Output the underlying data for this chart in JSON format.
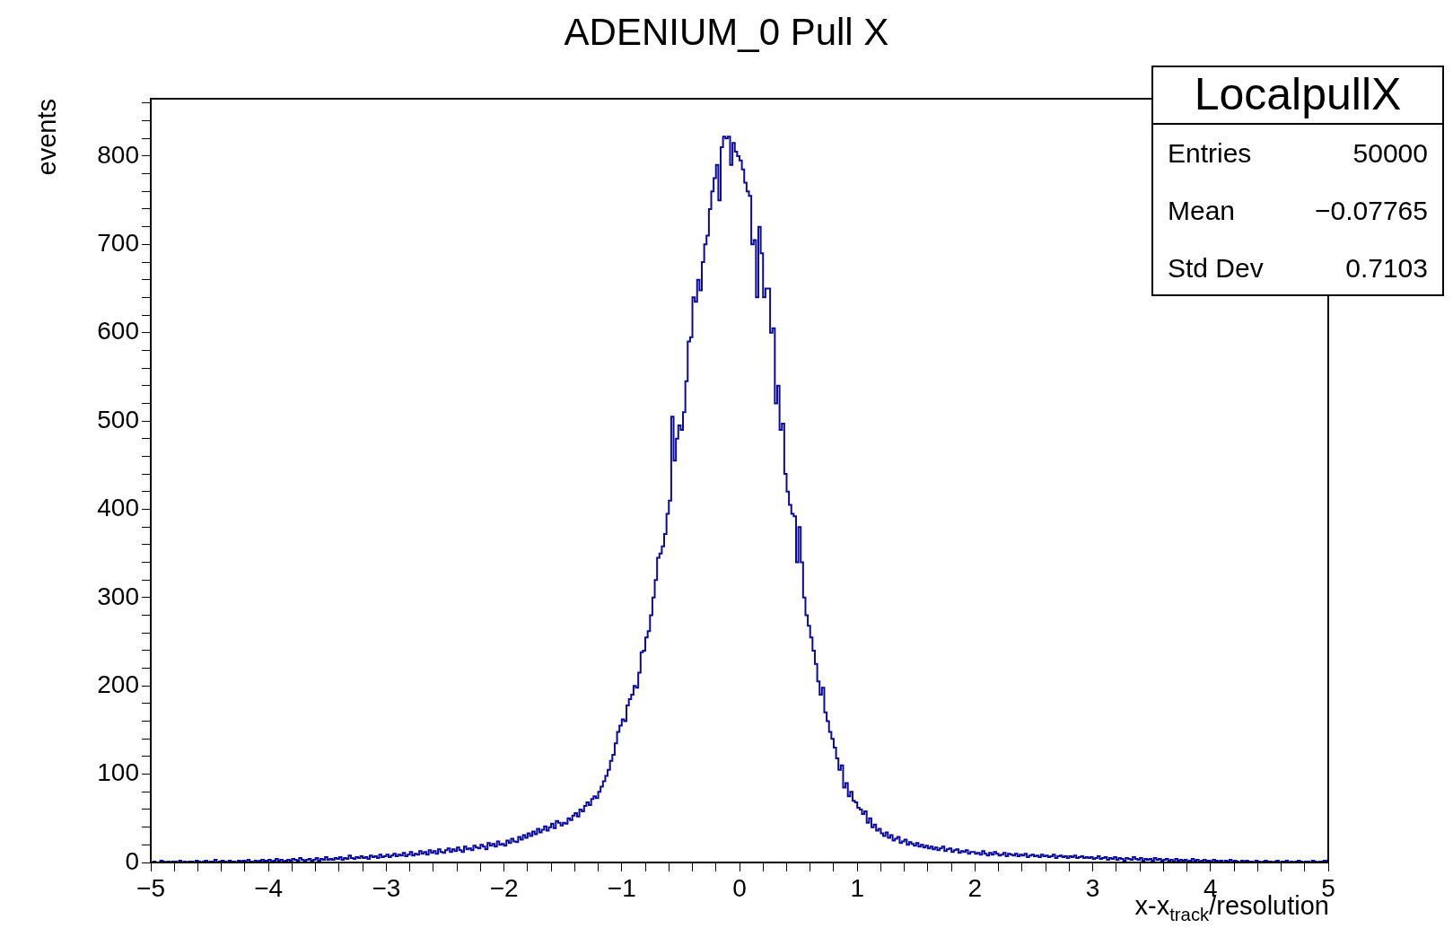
{
  "chart_data": {
    "type": "histogram",
    "title": "ADENIUM_0 Pull X",
    "xlabel": "x-x$_{track}$/resolution",
    "ylabel": "events",
    "color": "#0a0a9c",
    "annotations": [
      "LocalpullX",
      "Entries",
      "50000",
      "Mean",
      "−0.07765",
      "Std Dev",
      "0.7103"
    ],
    "bins": [
      -5,
      -4.98,
      -4.96,
      -4.94,
      -4.92,
      -4.9,
      -4.88,
      -4.86,
      -4.84,
      -4.82,
      -4.8,
      -4.78,
      -4.76,
      -4.74,
      -4.72,
      -4.7,
      -4.68,
      -4.66,
      -4.64,
      -4.62,
      -4.6,
      -4.58,
      -4.56,
      -4.54,
      -4.52,
      -4.5,
      -4.48,
      -4.46,
      -4.44,
      -4.42,
      -4.4,
      -4.38,
      -4.36,
      -4.34,
      -4.32,
      -4.3,
      -4.28,
      -4.26,
      -4.24,
      -4.22,
      -4.2,
      -4.18,
      -4.16,
      -4.14,
      -4.12,
      -4.1,
      -4.08,
      -4.06,
      -4.04,
      -4.02,
      -4,
      -3.98,
      -3.96,
      -3.94,
      -3.92,
      -3.9,
      -3.88,
      -3.86,
      -3.84,
      -3.82,
      -3.8,
      -3.78,
      -3.76,
      -3.74,
      -3.72,
      -3.7,
      -3.68,
      -3.66,
      -3.64,
      -3.62,
      -3.6,
      -3.58,
      -3.56,
      -3.54,
      -3.52,
      -3.5,
      -3.48,
      -3.46,
      -3.44,
      -3.42,
      -3.4,
      -3.38,
      -3.36,
      -3.34,
      -3.32,
      -3.3,
      -3.28,
      -3.26,
      -3.24,
      -3.22,
      -3.2,
      -3.18,
      -3.16,
      -3.14,
      -3.12,
      -3.1,
      -3.08,
      -3.06,
      -3.04,
      -3.02,
      -3,
      -2.98,
      -2.96,
      -2.94,
      -2.92,
      -2.9,
      -2.88,
      -2.86,
      -2.84,
      -2.82,
      -2.8,
      -2.78,
      -2.76,
      -2.74,
      -2.72,
      -2.7,
      -2.68,
      -2.66,
      -2.64,
      -2.62,
      -2.6,
      -2.58,
      -2.56,
      -2.54,
      -2.52,
      -2.5,
      -2.48,
      -2.46,
      -2.44,
      -2.42,
      -2.4,
      -2.38,
      -2.36,
      -2.34,
      -2.32,
      -2.3,
      -2.28,
      -2.26,
      -2.24,
      -2.22,
      -2.2,
      -2.18,
      -2.16,
      -2.14,
      -2.12,
      -2.1,
      -2.08,
      -2.06,
      -2.04,
      -2.02,
      -2,
      -1.98,
      -1.96,
      -1.94,
      -1.92,
      -1.9,
      -1.88,
      -1.86,
      -1.84,
      -1.82,
      -1.8,
      -1.78,
      -1.76,
      -1.74,
      -1.72,
      -1.7,
      -1.68,
      -1.66,
      -1.64,
      -1.62,
      -1.6,
      -1.58,
      -1.56,
      -1.54,
      -1.52,
      -1.5,
      -1.48,
      -1.46,
      -1.44,
      -1.42,
      -1.4,
      -1.38,
      -1.36,
      -1.34,
      -1.32,
      -1.3,
      -1.28,
      -1.26,
      -1.24,
      -1.22,
      -1.2,
      -1.18,
      -1.16,
      -1.14,
      -1.12,
      -1.1,
      -1.08,
      -1.06,
      -1.04,
      -1.02,
      -1,
      -0.98,
      -0.96,
      -0.94,
      -0.92,
      -0.9,
      -0.88,
      -0.86,
      -0.84,
      -0.82,
      -0.8,
      -0.78,
      -0.76,
      -0.74,
      -0.72,
      -0.7,
      -0.68,
      -0.66,
      -0.64,
      -0.62,
      -0.6,
      -0.58,
      -0.56,
      -0.54,
      -0.52,
      -0.5,
      -0.48,
      -0.46,
      -0.44,
      -0.42,
      -0.4,
      -0.38,
      -0.36,
      -0.34,
      -0.32,
      -0.3,
      -0.28,
      -0.26,
      -0.24,
      -0.22,
      -0.2,
      -0.18,
      -0.16,
      -0.14,
      -0.12,
      -0.1,
      -0.08,
      -0.06,
      -0.04,
      -0.02,
      0,
      0.02,
      0.04,
      0.06,
      0.08,
      0.1,
      0.12,
      0.14,
      0.16,
      0.18,
      0.2,
      0.22,
      0.24,
      0.26,
      0.28,
      0.3,
      0.32,
      0.34,
      0.36,
      0.38,
      0.4,
      0.42,
      0.44,
      0.46,
      0.48,
      0.5,
      0.52,
      0.54,
      0.56,
      0.58,
      0.6,
      0.62,
      0.64,
      0.66,
      0.68,
      0.7,
      0.72,
      0.74,
      0.76,
      0.78,
      0.8,
      0.82,
      0.84,
      0.86,
      0.88,
      0.9,
      0.92,
      0.94,
      0.96,
      0.98,
      1,
      1.02,
      1.04,
      1.06,
      1.08,
      1.1,
      1.12,
      1.14,
      1.16,
      1.18,
      1.2,
      1.22,
      1.24,
      1.26,
      1.28,
      1.3,
      1.32,
      1.34,
      1.36,
      1.38,
      1.4,
      1.42,
      1.44,
      1.46,
      1.48,
      1.5,
      1.52,
      1.54,
      1.56,
      1.58,
      1.6,
      1.62,
      1.64,
      1.66,
      1.68,
      1.7,
      1.72,
      1.74,
      1.76,
      1.78,
      1.8,
      1.82,
      1.84,
      1.86,
      1.88,
      1.9,
      1.92,
      1.94,
      1.96,
      1.98,
      2,
      2.02,
      2.04,
      2.06,
      2.08,
      2.1,
      2.12,
      2.14,
      2.16,
      2.18,
      2.2,
      2.22,
      2.24,
      2.26,
      2.28,
      2.3,
      2.32,
      2.34,
      2.36,
      2.38,
      2.4,
      2.42,
      2.44,
      2.46,
      2.48,
      2.5,
      2.52,
      2.54,
      2.56,
      2.58,
      2.6,
      2.62,
      2.64,
      2.66,
      2.68,
      2.7,
      2.72,
      2.74,
      2.76,
      2.78,
      2.8,
      2.82,
      2.84,
      2.86,
      2.88,
      2.9,
      2.92,
      2.94,
      2.96,
      2.98,
      3,
      3.02,
      3.04,
      3.06,
      3.08,
      3.1,
      3.12,
      3.14,
      3.16,
      3.18,
      3.2,
      3.22,
      3.24,
      3.26,
      3.28,
      3.3,
      3.32,
      3.34,
      3.36,
      3.38,
      3.4,
      3.42,
      3.44,
      3.46,
      3.48,
      3.5,
      3.52,
      3.54,
      3.56,
      3.58,
      3.6,
      3.62,
      3.64,
      3.66,
      3.68,
      3.7,
      3.72,
      3.74,
      3.76,
      3.78,
      3.8,
      3.82,
      3.84,
      3.86,
      3.88,
      3.9,
      3.92,
      3.94,
      3.96,
      3.98,
      4,
      4.02,
      4.04,
      4.06,
      4.08,
      4.1,
      4.12,
      4.14,
      4.16,
      4.18,
      4.2,
      4.22,
      4.24,
      4.26,
      4.28,
      4.3,
      4.32,
      4.34,
      4.36,
      4.38,
      4.4,
      4.42,
      4.44,
      4.46,
      4.48,
      4.5,
      4.52,
      4.54,
      4.56,
      4.58,
      4.6,
      4.62,
      4.64,
      4.66,
      4.68,
      4.7,
      4.72,
      4.74,
      4.76,
      4.78,
      4.8,
      4.82,
      4.84,
      4.86,
      4.88,
      4.9,
      4.92,
      4.94,
      4.96,
      4.98,
      5
    ],
    "values": [
      1,
      0,
      1,
      0,
      0,
      2,
      1,
      0,
      1,
      0,
      1,
      1,
      0,
      2,
      0,
      1,
      0,
      1,
      1,
      0,
      2,
      1,
      0,
      1,
      2,
      0,
      1,
      1,
      3,
      0,
      1,
      2,
      1,
      0,
      2,
      1,
      1,
      0,
      2,
      1,
      2,
      1,
      3,
      1,
      0,
      2,
      1,
      2,
      3,
      2,
      2,
      3,
      1,
      2,
      4,
      2,
      3,
      1,
      2,
      3,
      2,
      4,
      3,
      2,
      5,
      3,
      2,
      3,
      4,
      2,
      3,
      5,
      2,
      4,
      3,
      6,
      3,
      4,
      3,
      5,
      4,
      6,
      3,
      5,
      4,
      8,
      5,
      4,
      6,
      5,
      7,
      5,
      6,
      4,
      8,
      6,
      7,
      5,
      9,
      6,
      7,
      9,
      6,
      8,
      10,
      7,
      9,
      8,
      11,
      7,
      9,
      12,
      8,
      10,
      9,
      13,
      10,
      12,
      9,
      14,
      11,
      13,
      10,
      15,
      12,
      11,
      14,
      16,
      12,
      15,
      13,
      17,
      14,
      12,
      18,
      15,
      16,
      14,
      19,
      17,
      16,
      20,
      18,
      15,
      22,
      19,
      21,
      18,
      24,
      20,
      21,
      19,
      25,
      22,
      27,
      24,
      23,
      29,
      26,
      31,
      28,
      33,
      30,
      35,
      32,
      38,
      34,
      37,
      41,
      36,
      40,
      44,
      39,
      47,
      45,
      42,
      45,
      44,
      50,
      48,
      53,
      56,
      52,
      60,
      58,
      64,
      68,
      65,
      72,
      75,
      73,
      80,
      86,
      92,
      98,
      105,
      115,
      122,
      135,
      148,
      155,
      162,
      160,
      178,
      185,
      190,
      200,
      198,
      215,
      238,
      240,
      255,
      262,
      280,
      300,
      320,
      345,
      350,
      358,
      372,
      395,
      410,
      505,
      455,
      480,
      495,
      490,
      510,
      545,
      590,
      595,
      640,
      635,
      660,
      648,
      680,
      700,
      710,
      740,
      760,
      775,
      790,
      750,
      810,
      822,
      820,
      822,
      790,
      815,
      805,
      800,
      795,
      785,
      770,
      760,
      755,
      700,
      705,
      640,
      720,
      690,
      640,
      650,
      650,
      600,
      605,
      520,
      540,
      490,
      497,
      440,
      420,
      405,
      395,
      392,
      340,
      380,
      340,
      300,
      280,
      268,
      255,
      240,
      225,
      205,
      190,
      198,
      170,
      160,
      148,
      140,
      130,
      118,
      105,
      110,
      85,
      90,
      75,
      80,
      70,
      68,
      62,
      60,
      55,
      58,
      45,
      50,
      40,
      43,
      36,
      38,
      33,
      30,
      34,
      28,
      31,
      25,
      27,
      29,
      22,
      24,
      26,
      20,
      23,
      21,
      19,
      22,
      18,
      20,
      17,
      19,
      16,
      18,
      15,
      17,
      14,
      16,
      18,
      13,
      15,
      16,
      12,
      14,
      15,
      11,
      13,
      12,
      14,
      10,
      12,
      12,
      10,
      11,
      9,
      13,
      10,
      8,
      11,
      9,
      12,
      10,
      8,
      9,
      11,
      7,
      10,
      9,
      8,
      10,
      7,
      9,
      8,
      10,
      6,
      8,
      9,
      7,
      8,
      6,
      9,
      7,
      8,
      6,
      7,
      9,
      5,
      7,
      8,
      6,
      7,
      5,
      7,
      6,
      8,
      5,
      6,
      7,
      5,
      6,
      5,
      6,
      4,
      5,
      7,
      4,
      5,
      6,
      3,
      5,
      4,
      6,
      3,
      5,
      4,
      2,
      5,
      4,
      3,
      6,
      4,
      3,
      5,
      2,
      4,
      3,
      4,
      2,
      5,
      3,
      4,
      2,
      3,
      4,
      2,
      3,
      1,
      4,
      2,
      3,
      2,
      3,
      1,
      2,
      4,
      2,
      3,
      1,
      2,
      3,
      2,
      2,
      1,
      3,
      2,
      1,
      2,
      0,
      2,
      1,
      3,
      1,
      2,
      1,
      0,
      2,
      1,
      2,
      1,
      1,
      0,
      2,
      1,
      0,
      1,
      2,
      1,
      1,
      0,
      1,
      2,
      0,
      1,
      1,
      2,
      0,
      1,
      0,
      1,
      2,
      1,
      0,
      1,
      1,
      0,
      2,
      1,
      0,
      1,
      1,
      2
    ],
    "xlim": [
      -5,
      5
    ],
    "ylim": [
      0,
      865
    ],
    "xticks": [
      -5,
      {
        "value": -4.8,
        "label": null
      },
      {
        "value": -4.6,
        "label": null
      },
      {
        "value": -4.4,
        "label": null
      },
      {
        "value": -4.2,
        "label": null
      },
      -4,
      {
        "value": -3.8,
        "label": null
      },
      {
        "value": -3.6,
        "label": null
      },
      {
        "value": -3.4,
        "label": null
      },
      {
        "value": -3.2,
        "label": null
      },
      -3,
      {
        "value": -2.8,
        "label": null
      },
      {
        "value": -2.6,
        "label": null
      },
      {
        "value": -2.4,
        "label": null
      },
      {
        "value": -2.2,
        "label": null
      },
      -2,
      {
        "value": -1.8,
        "label": null
      },
      {
        "value": -1.6,
        "label": null
      },
      {
        "value": -1.4,
        "label": null
      },
      {
        "value": -1.2,
        "label": null
      },
      -1,
      {
        "value": -0.8,
        "label": null
      },
      {
        "value": -0.6,
        "label": null
      },
      {
        "value": -0.4,
        "label": null
      },
      {
        "value": -0.2,
        "label": null
      },
      0,
      {
        "value": 0.2,
        "label": null
      },
      {
        "value": 0.4,
        "label": null
      },
      {
        "value": 0.6,
        "label": null
      },
      {
        "value": 0.8,
        "label": null
      },
      1,
      {
        "value": 1.2,
        "label": null
      },
      {
        "value": 1.4,
        "label": null
      },
      {
        "value": 1.6,
        "label": null
      },
      {
        "value": 1.8,
        "label": null
      },
      2,
      {
        "value": 2.2,
        "label": null
      },
      {
        "value": 2.4,
        "label": null
      },
      {
        "value": 2.6,
        "label": null
      },
      {
        "value": 2.8,
        "label": null
      },
      3,
      {
        "value": 3.2,
        "label": null
      },
      {
        "value": 3.4,
        "label": null
      },
      {
        "value": 3.6,
        "label": null
      },
      {
        "value": 3.8,
        "label": null
      },
      4,
      {
        "value": 4.2,
        "label": null
      },
      {
        "value": 4.4,
        "label": null
      },
      {
        "value": 4.6,
        "label": null
      },
      {
        "value": 4.8,
        "label": null
      },
      5
    ],
    "yticks": [
      0,
      {
        "value": 20,
        "label": null
      },
      {
        "value": 40,
        "label": null
      },
      {
        "value": 60,
        "label": null
      },
      {
        "value": 80,
        "label": null
      },
      100,
      {
        "value": 120,
        "label": null
      },
      {
        "value": 140,
        "label": null
      },
      {
        "value": 160,
        "label": null
      },
      {
        "value": 180,
        "label": null
      },
      200,
      {
        "value": 220,
        "label": null
      },
      {
        "value": 240,
        "label": null
      },
      {
        "value": 260,
        "label": null
      },
      {
        "value": 280,
        "label": null
      },
      300,
      {
        "value": 320,
        "label": null
      },
      {
        "value": 340,
        "label": null
      },
      {
        "value": 360,
        "label": null
      },
      {
        "value": 380,
        "label": null
      },
      400,
      {
        "value": 420,
        "label": null
      },
      {
        "value": 440,
        "label": null
      },
      {
        "value": 460,
        "label": null
      },
      {
        "value": 480,
        "label": null
      },
      500,
      {
        "value": 520,
        "label": null
      },
      {
        "value": 540,
        "label": null
      },
      {
        "value": 560,
        "label": null
      },
      {
        "value": 580,
        "label": null
      },
      600,
      {
        "value": 620,
        "label": null
      },
      {
        "value": 640,
        "label": null
      },
      {
        "value": 660,
        "label": null
      },
      {
        "value": 680,
        "label": null
      },
      700,
      {
        "value": 720,
        "label": null
      },
      {
        "value": 740,
        "label": null
      },
      {
        "value": 760,
        "label": null
      },
      {
        "value": 780,
        "label": null
      },
      800,
      {
        "value": 820,
        "label": null
      },
      {
        "value": 840,
        "label": null
      },
      {
        "value": 860,
        "label": null
      }
    ],
    "grid": false,
    "legend": false
  }
}
